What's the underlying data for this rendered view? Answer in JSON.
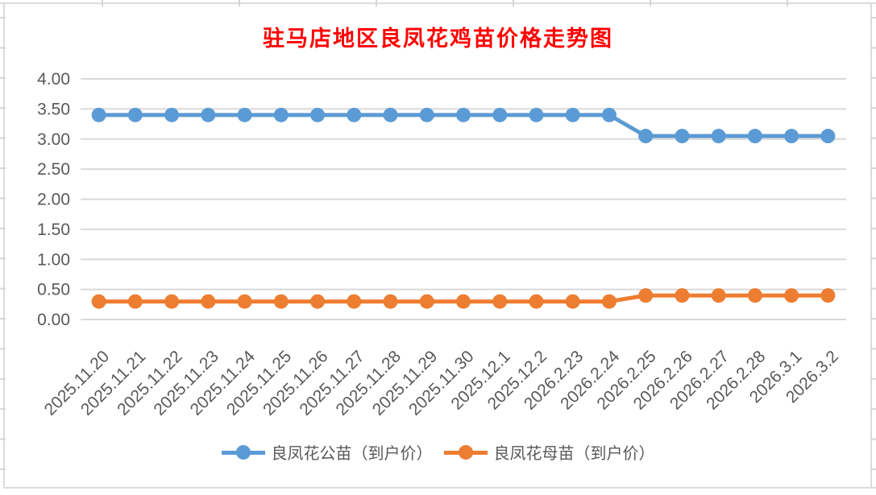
{
  "title": {
    "text": "驻马店地区良凤花鸡苗价格走势图",
    "color": "#FF0000"
  },
  "legend": {
    "items": [
      {
        "label": "良凤花公苗（到户价）",
        "color": "#5B9BD5"
      },
      {
        "label": "良凤花母苗（到户价）",
        "color": "#ED7D31"
      }
    ]
  },
  "chart_data": {
    "type": "line",
    "title": "驻马店地区良凤花鸡苗价格走势图",
    "categories": [
      "2025.11.20",
      "2025.11.21",
      "2025.11.22",
      "2025.11.23",
      "2025.11.24",
      "2025.11.25",
      "2025.11.26",
      "2025.11.27",
      "2025.11.28",
      "2025.11.29",
      "2025.11.30",
      "2025.12.1",
      "2025.12.2",
      "2026.2.23",
      "2026.2.24",
      "2026.2.25",
      "2026.2.26",
      "2026.2.27",
      "2026.2.28",
      "2026.3.1",
      "2026.3.2"
    ],
    "series": [
      {
        "name": "良凤花公苗（到户价）",
        "color": "#5B9BD5",
        "values": [
          3.4,
          3.4,
          3.4,
          3.4,
          3.4,
          3.4,
          3.4,
          3.4,
          3.4,
          3.4,
          3.4,
          3.4,
          3.4,
          3.4,
          3.4,
          3.05,
          3.05,
          3.05,
          3.05,
          3.05,
          3.05
        ]
      },
      {
        "name": "良凤花母苗（到户价）",
        "color": "#ED7D31",
        "values": [
          0.3,
          0.3,
          0.3,
          0.3,
          0.3,
          0.3,
          0.3,
          0.3,
          0.3,
          0.3,
          0.3,
          0.3,
          0.3,
          0.3,
          0.3,
          0.4,
          0.4,
          0.4,
          0.4,
          0.4,
          0.4
        ]
      }
    ],
    "xlabel": "",
    "ylabel": "",
    "ylim": [
      0,
      4
    ],
    "y_ticks": [
      "0.00",
      "0.50",
      "1.00",
      "1.50",
      "2.00",
      "2.50",
      "3.00",
      "3.50",
      "4.00"
    ],
    "grid": true,
    "legend_position": "bottom",
    "colors": {
      "grid": "#D9D9D9",
      "axis_text": "#595959",
      "edge": "#DCDCDC"
    }
  }
}
